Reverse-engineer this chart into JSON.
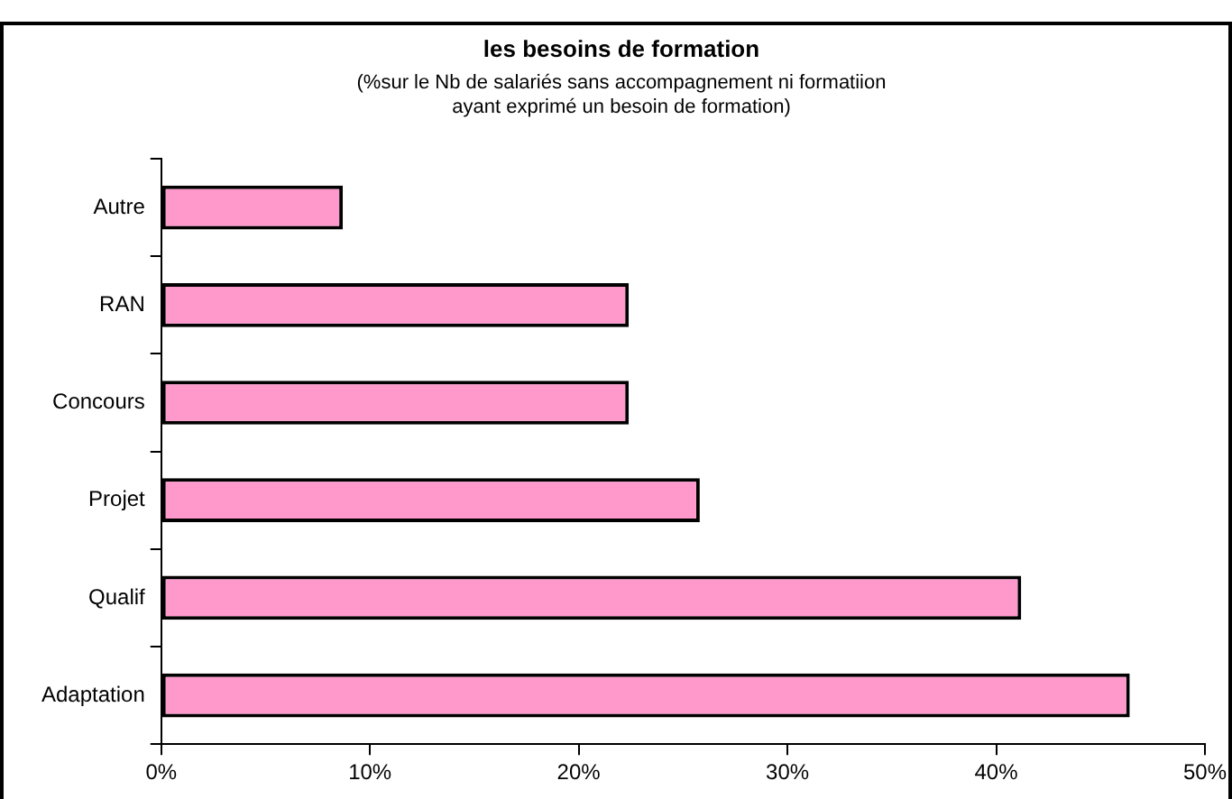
{
  "chart_data": {
    "type": "bar",
    "orientation": "horizontal",
    "title": "les besoins de formation",
    "subtitle": "(%sur le Nb de salariés sans accompagnement ni formatiion\nayant exprimé un besoin de formation)",
    "categories": [
      "Autre",
      "RAN",
      "Concours",
      "Projet",
      "Qualif",
      "Adaptation"
    ],
    "values": [
      8.7,
      22.4,
      22.4,
      25.8,
      41.2,
      46.4
    ],
    "color": "#ff99cc",
    "xlim": [
      0,
      50
    ],
    "xticks": [
      {
        "value": 0,
        "label": "0%"
      },
      {
        "value": 10,
        "label": "10%"
      },
      {
        "value": 20,
        "label": "20%"
      },
      {
        "value": 30,
        "label": "30%"
      },
      {
        "value": 40,
        "label": "40%"
      },
      {
        "value": 50,
        "label": "50%"
      }
    ],
    "grid": false,
    "legend": false
  }
}
